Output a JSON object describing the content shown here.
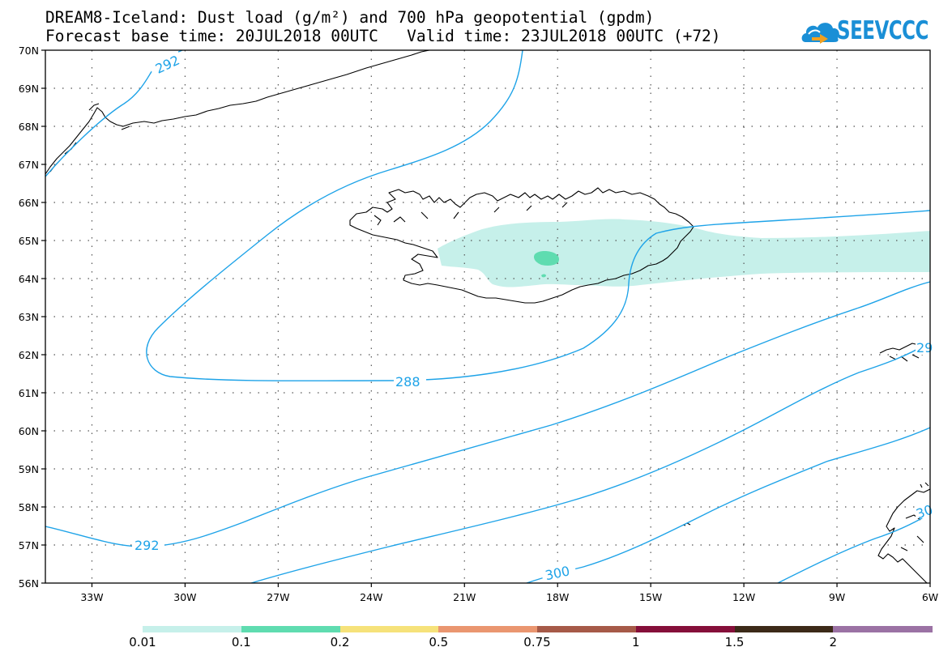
{
  "title": {
    "line1": "DREAM8-Iceland: Dust load (g/m²) and 700 hPa geopotential (gpdm)",
    "line2": "Forecast base time: 20JUL2018 00UTC   Valid time: 23JUL2018 00UTC (+72)"
  },
  "logo": {
    "text": "SEEVCCC",
    "icon": "cloud-logo-icon",
    "color": "#1a8fd6"
  },
  "map": {
    "region": "Iceland",
    "lat_range": [
      56,
      70
    ],
    "lon_range": [
      -34.5,
      -6
    ],
    "lat_labels": [
      "70N",
      "69N",
      "68N",
      "67N",
      "66N",
      "65N",
      "64N",
      "63N",
      "62N",
      "61N",
      "60N",
      "59N",
      "58N",
      "57N",
      "56N"
    ],
    "lon_labels": [
      "33W",
      "30W",
      "27W",
      "24W",
      "21W",
      "18W",
      "15W",
      "12W",
      "9W",
      "6W"
    ],
    "gridlines": true,
    "contour_color": "#1ea3e8",
    "contour_labels": [
      "292",
      "288",
      "292",
      "300",
      "29",
      "30"
    ]
  },
  "colorbar": {
    "colors": [
      "#c6f0ea",
      "#5fdcb0",
      "#f6e27a",
      "#ea9670",
      "#a65a48",
      "#850f3a",
      "#3c2a18",
      "#9b72a4"
    ],
    "labels": [
      "0.01",
      "0.1",
      "0.2",
      "0.5",
      "0.75",
      "1",
      "1.5",
      "2"
    ]
  }
}
